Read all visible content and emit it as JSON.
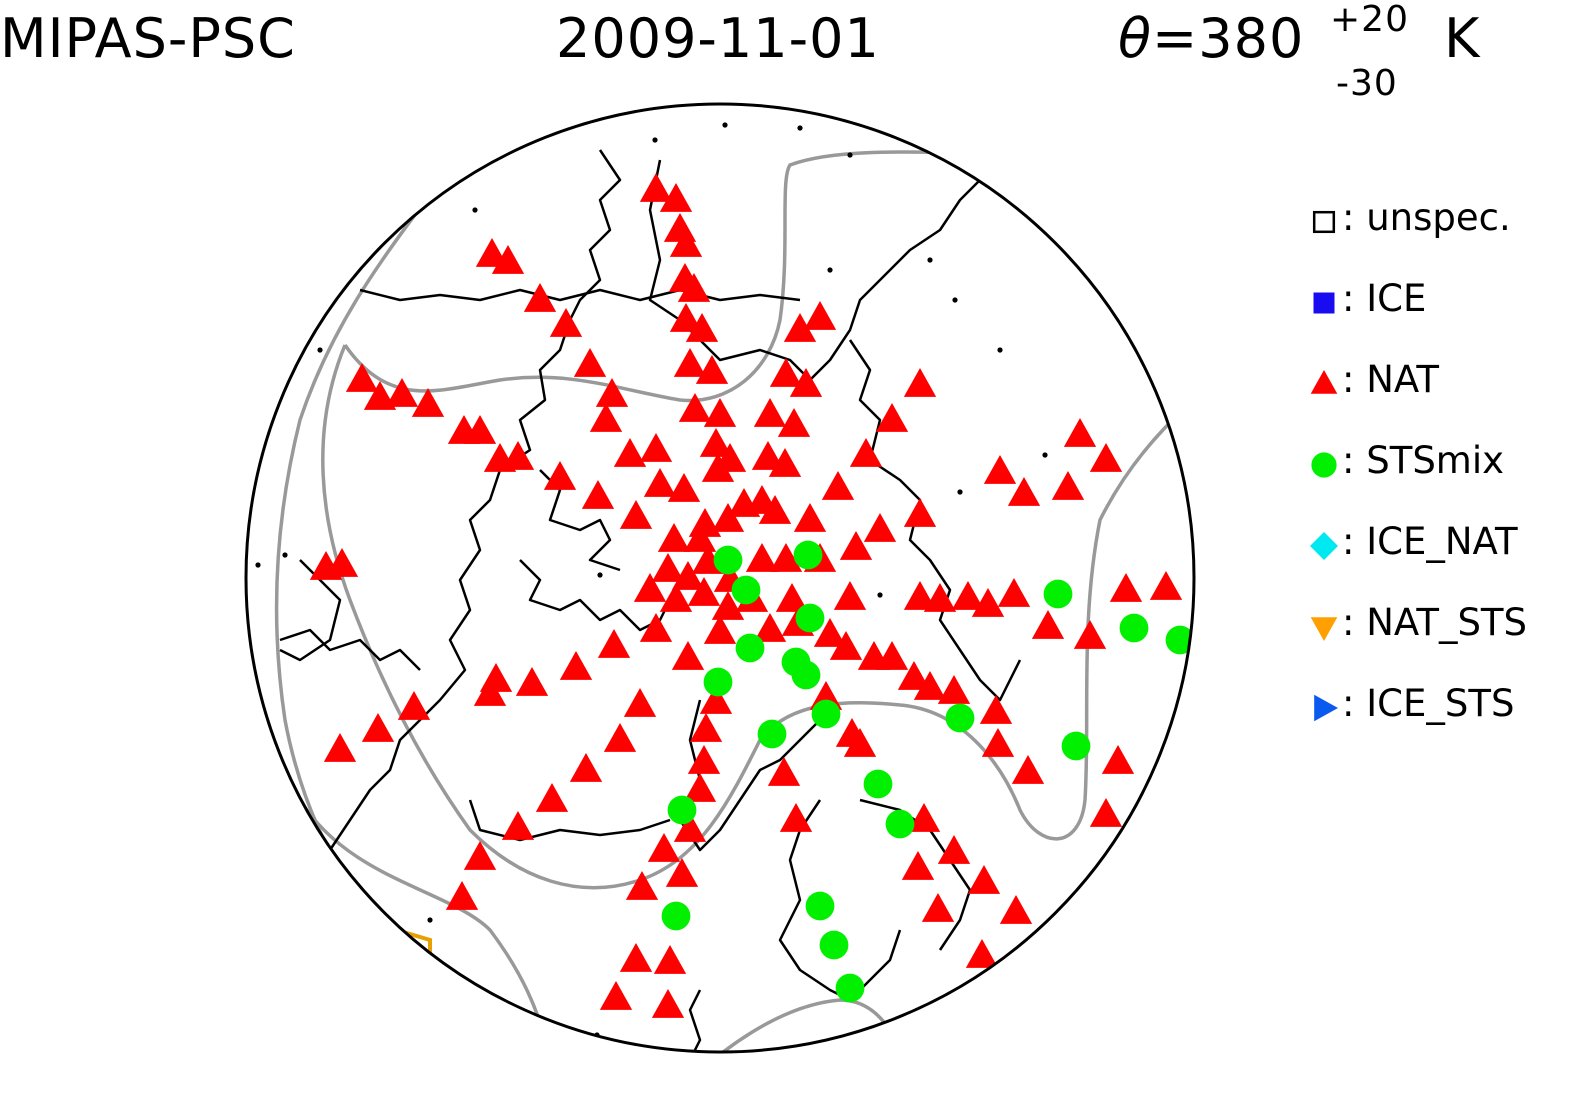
{
  "title": {
    "instrument": "MIPAS-PSC",
    "date": "2009-11-01",
    "theta_symbol": "θ",
    "theta_value": "=380",
    "theta_plus": "+20",
    "theta_minus": "-30",
    "theta_unit": "K"
  },
  "legend": [
    {
      "label": ": unspec.",
      "marker": "open-square",
      "color": "#000000"
    },
    {
      "label": ": ICE",
      "marker": "square",
      "color": "#1a0cf0"
    },
    {
      "label": ": NAT",
      "marker": "triangle-up",
      "color": "#ff0000"
    },
    {
      "label": ": STSmix",
      "marker": "circle",
      "color": "#00f000"
    },
    {
      "label": ": ICE_NAT",
      "marker": "diamond",
      "color": "#00e8f0"
    },
    {
      "label": ": NAT_STS",
      "marker": "triangle-down",
      "color": "#ffa000"
    },
    {
      "label": ": ICE_STS",
      "marker": "triangle-right",
      "color": "#0a5af0"
    }
  ],
  "map": {
    "projection": "north-polar-stereographic",
    "coastline_color": "#000000",
    "contour_color": "#999999",
    "boundary_color": "#e8a000"
  }
}
